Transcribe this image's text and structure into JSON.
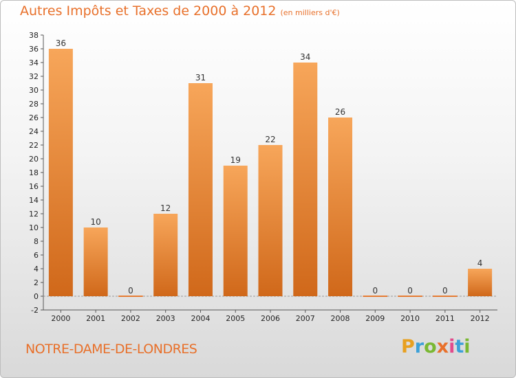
{
  "header": {
    "title": "Autres Impôts et Taxes de 2000 à 2012",
    "unit": "(en milliers d'€)"
  },
  "footer": {
    "commune": "NOTRE-DAME-DE-LONDRES",
    "brand_letters": [
      "P",
      "r",
      "o",
      "x",
      "i",
      "t",
      "i"
    ],
    "brand_colors": [
      "#e8a020",
      "#3ca0d8",
      "#7ab833",
      "#e8702a",
      "#e24b8c",
      "#3ca0d8",
      "#7ab833"
    ]
  },
  "colors": {
    "bar_top": "#f7a65a",
    "bar_bottom": "#d0681a",
    "accent": "#e8702a"
  },
  "chart_data": {
    "type": "bar",
    "categories": [
      "2000",
      "2001",
      "2002",
      "2003",
      "2004",
      "2005",
      "2006",
      "2007",
      "2008",
      "2009",
      "2010",
      "2011",
      "2012"
    ],
    "values": [
      36,
      10,
      0,
      12,
      31,
      19,
      22,
      34,
      26,
      0,
      0,
      0,
      4
    ],
    "ylim": [
      -2,
      38
    ],
    "yticks": [
      -2,
      0,
      2,
      4,
      6,
      8,
      10,
      12,
      14,
      16,
      18,
      20,
      22,
      24,
      26,
      28,
      30,
      32,
      34,
      36,
      38
    ],
    "grid": false,
    "legend": "none"
  }
}
